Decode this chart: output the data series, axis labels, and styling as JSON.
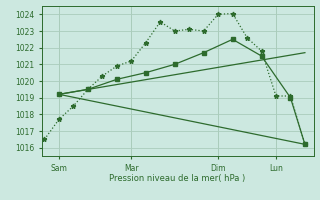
{
  "bg_color": "#cce8e0",
  "grid_color": "#aaccbb",
  "line_color": "#2d6b2d",
  "title": "Pression niveau de la mer( hPa )",
  "ylim": [
    1015.5,
    1024.5
  ],
  "yticks": [
    1016,
    1017,
    1018,
    1019,
    1020,
    1021,
    1022,
    1023,
    1024
  ],
  "xtick_labels": [
    "Sam",
    "Mar",
    "Dim",
    "Lun"
  ],
  "xtick_positions": [
    0.5,
    3.0,
    6.0,
    8.0
  ],
  "xlim": [
    -0.1,
    9.3
  ],
  "series1_x": [
    0.0,
    0.5,
    1.0,
    1.5,
    2.0,
    2.5,
    3.0,
    3.5,
    4.0,
    4.5,
    5.0,
    5.5,
    6.0,
    6.5,
    7.0,
    7.5,
    8.0,
    8.5,
    9.0
  ],
  "series1_y": [
    1016.5,
    1017.7,
    1018.5,
    1019.5,
    1020.3,
    1020.9,
    1021.2,
    1022.3,
    1023.55,
    1023.0,
    1023.1,
    1023.0,
    1024.0,
    1024.05,
    1022.6,
    1021.8,
    1019.1,
    1019.1,
    1016.2
  ],
  "series2_x": [
    0.5,
    1.5,
    2.5,
    3.5,
    4.5,
    5.5,
    6.5,
    7.5,
    8.5,
    9.0
  ],
  "series2_y": [
    1019.2,
    1019.5,
    1020.1,
    1020.5,
    1021.0,
    1021.7,
    1022.5,
    1021.5,
    1019.0,
    1016.2
  ],
  "series3_x": [
    0.5,
    9.0
  ],
  "series3_y": [
    1019.2,
    1016.2
  ],
  "series4_x": [
    0.5,
    9.0
  ],
  "series4_y": [
    1019.2,
    1021.7
  ]
}
